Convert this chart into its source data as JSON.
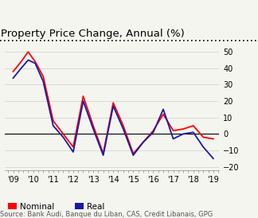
{
  "title": "Property Price Change, Annual (%)",
  "source": "Source: Bank Audi, Banque du Liban, CAS, Credit Libanais, GPG",
  "ylim": [
    -22,
    55
  ],
  "yticks": [
    -20,
    -10,
    0,
    10,
    20,
    30,
    40,
    50
  ],
  "x_nominal": [
    2009.0,
    2009.4,
    2009.75,
    2010.1,
    2010.5,
    2011.0,
    2011.5,
    2012.0,
    2012.5,
    2013.0,
    2013.5,
    2014.0,
    2014.5,
    2015.0,
    2015.5,
    2016.0,
    2016.5,
    2017.0,
    2017.5,
    2018.0,
    2018.5,
    2019.0
  ],
  "nominal": [
    38,
    44,
    50,
    44,
    35,
    8,
    0,
    -8,
    23,
    5,
    -12,
    19,
    5,
    -12,
    -5,
    2,
    12,
    2,
    3,
    5,
    -2,
    -3
  ],
  "x_real": [
    2009.0,
    2009.4,
    2009.75,
    2010.1,
    2010.5,
    2011.0,
    2011.5,
    2012.0,
    2012.5,
    2013.0,
    2013.5,
    2014.0,
    2014.5,
    2015.0,
    2015.5,
    2016.0,
    2016.5,
    2017.0,
    2017.5,
    2018.0,
    2018.5,
    2019.0
  ],
  "real": [
    34,
    40,
    45,
    43,
    32,
    5,
    -2,
    -11,
    20,
    3,
    -13,
    17,
    3,
    -13,
    -5,
    1,
    15,
    -3,
    0,
    1,
    -8,
    -15
  ],
  "nominal_color": "#ff0000",
  "real_color": "#1a1aaa",
  "bg_color": "#f5f5f0",
  "legend_items": [
    "Nominal",
    "Real"
  ],
  "title_fontsize": 9.5,
  "source_fontsize": 6.0,
  "legend_fontsize": 7.5,
  "axis_fontsize": 7.0,
  "xtick_labels": [
    "'09",
    "'10",
    "'11",
    "'12",
    "'13",
    "'14",
    "'15",
    "'16",
    "'17",
    "'18",
    "'19"
  ],
  "xtick_positions": [
    2009,
    2010,
    2011,
    2012,
    2013,
    2014,
    2015,
    2016,
    2017,
    2018,
    2019
  ]
}
